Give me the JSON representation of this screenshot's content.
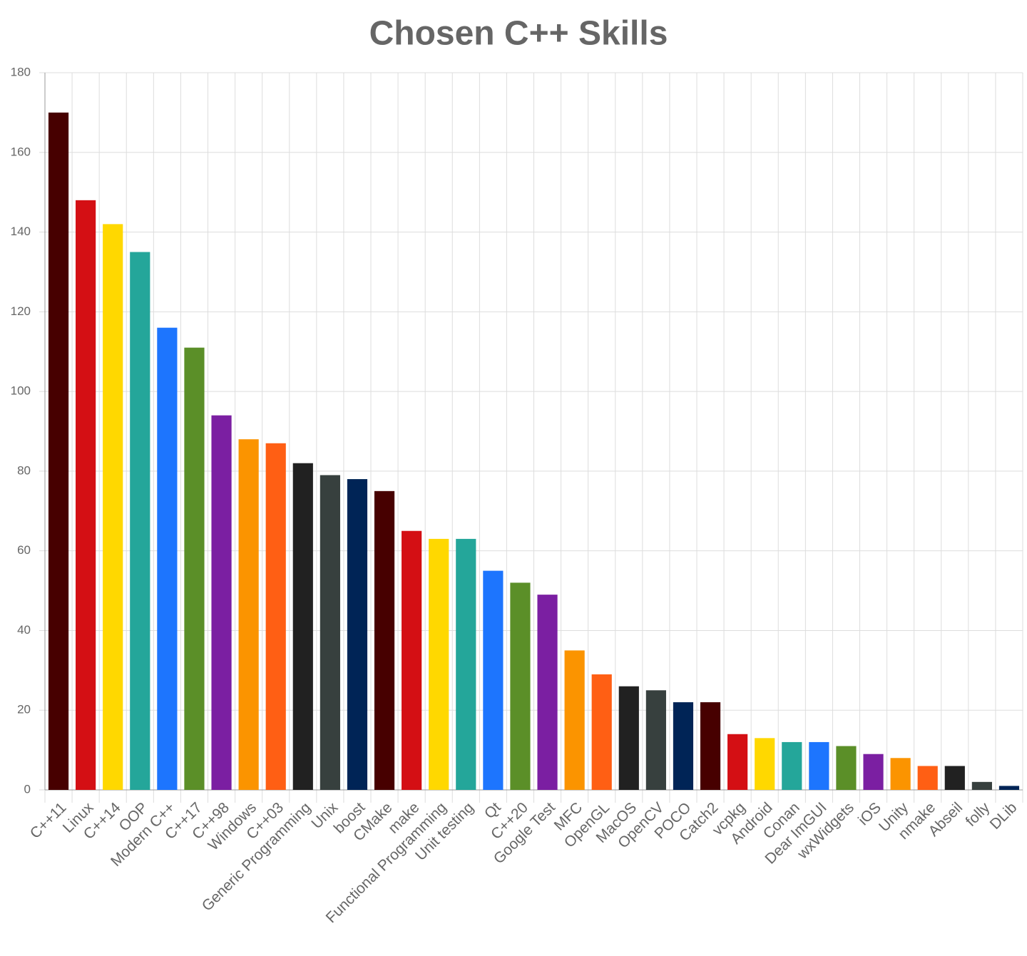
{
  "chart_data": {
    "type": "bar",
    "title": "Chosen C++ Skills",
    "categories": [
      "C++11",
      "Linux",
      "C++14",
      "OOP",
      "Modern C++",
      "C++17",
      "C++98",
      "Windows",
      "C++03",
      "Generic Programming",
      "Unix",
      "boost",
      "CMake",
      "make",
      "Functional Programming",
      "Unit testing",
      "Qt",
      "C++20",
      "Google Test",
      "MFC",
      "OpenGL",
      "MacOS",
      "OpenCV",
      "POCO",
      "Catch2",
      "vcpkg",
      "Android",
      "Conan",
      "Dear ImGUI",
      "wxWidgets",
      "iOS",
      "Unity",
      "nmake",
      "Abseil",
      "folly",
      "DLib"
    ],
    "values": [
      170,
      148,
      142,
      135,
      116,
      111,
      94,
      88,
      87,
      82,
      79,
      78,
      75,
      65,
      63,
      63,
      55,
      52,
      49,
      35,
      29,
      26,
      25,
      22,
      22,
      14,
      13,
      12,
      12,
      11,
      9,
      8,
      6,
      6,
      2,
      1
    ],
    "colors": [
      "#470000",
      "#d40f14",
      "#ffd800",
      "#24a69a",
      "#1d75fe",
      "#5b8f28",
      "#7b1fa2",
      "#fb9400",
      "#ff5f14",
      "#212121",
      "#37403e",
      "#002456",
      "#470000",
      "#d40f14",
      "#ffd800",
      "#24a69a",
      "#1d75fe",
      "#5b8f28",
      "#7b1fa2",
      "#fb9400",
      "#ff5f14",
      "#212121",
      "#37403e",
      "#002456",
      "#470000",
      "#d40f14",
      "#ffd800",
      "#24a69a",
      "#1d75fe",
      "#5b8f28",
      "#7b1fa2",
      "#fb9400",
      "#ff5f14",
      "#212121",
      "#37403e",
      "#002456"
    ],
    "ylim": [
      0,
      180
    ],
    "yticks": [
      0,
      20,
      40,
      60,
      80,
      100,
      120,
      140,
      160,
      180
    ],
    "grid": true
  }
}
